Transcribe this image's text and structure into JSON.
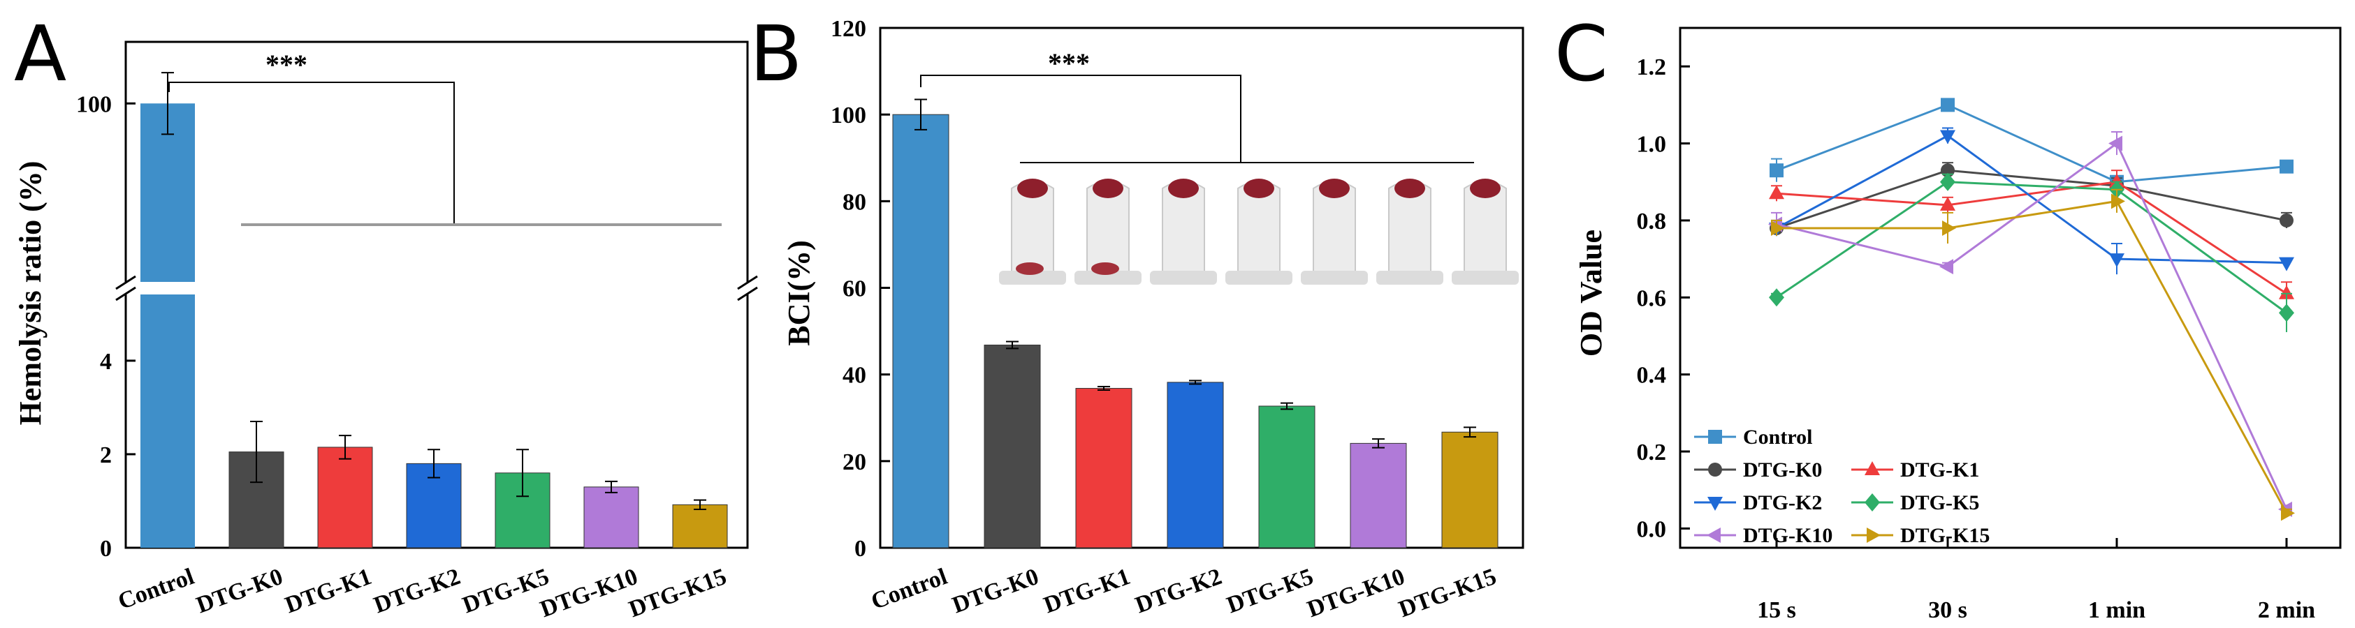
{
  "colors": {
    "Control": "#3f8fc9",
    "DTG-K0": "#4a4a4a",
    "DTG-K1": "#ee3c3c",
    "DTG-K2": "#1f6ad6",
    "DTG-K5": "#2fae68",
    "DTG-K10": "#b07ad8",
    "DTG-K15": "#c89a10"
  },
  "chart_data": [
    {
      "panel": "A",
      "type": "bar",
      "ylabel": "Hemolysis ratio (%)",
      "axis_break": true,
      "ylim_lower": [
        0,
        4.7
      ],
      "ylim_upper": [
        70,
        110
      ],
      "yticks": [
        "0",
        "2",
        "4",
        "100"
      ],
      "categories": [
        "Control",
        "DTG-K0",
        "DTG-K1",
        "DTG-K2",
        "DTG-K5",
        "DTG-K10",
        "DTG-K15"
      ],
      "values": [
        100,
        2.05,
        2.15,
        1.8,
        1.6,
        1.3,
        0.92
      ],
      "errors": [
        5,
        0.65,
        0.25,
        0.3,
        0.5,
        0.12,
        0.1
      ],
      "significance": "***"
    },
    {
      "panel": "B",
      "type": "bar",
      "ylabel": "BCI(%)",
      "ylim": [
        0,
        120
      ],
      "yticks": [
        "0",
        "20",
        "40",
        "60",
        "80",
        "100",
        "120"
      ],
      "categories": [
        "Control",
        "DTG-K0",
        "DTG-K1",
        "DTG-K2",
        "DTG-K5",
        "DTG-K10",
        "DTG-K15"
      ],
      "values": [
        100,
        46.8,
        36.8,
        38.2,
        32.7,
        24.1,
        26.7
      ],
      "errors": [
        3.5,
        0.8,
        0.4,
        0.4,
        0.7,
        1.0,
        1.1
      ],
      "significance": "***"
    },
    {
      "panel": "C",
      "type": "line",
      "ylabel": "OD Value",
      "ylim": [
        -0.05,
        1.3
      ],
      "yticks": [
        "0.0",
        "0.2",
        "0.4",
        "0.6",
        "0.8",
        "1.0",
        "1.2"
      ],
      "x": [
        "15 s",
        "30 s",
        "1 min",
        "2 min"
      ],
      "series": [
        {
          "name": "Control",
          "values": [
            0.93,
            1.1,
            0.9,
            0.94
          ],
          "errors": [
            0.03,
            0.01,
            0.01,
            0.01
          ],
          "marker": "square"
        },
        {
          "name": "DTG-K0",
          "values": [
            0.78,
            0.93,
            0.89,
            0.8
          ],
          "errors": [
            0.02,
            0.02,
            0.02,
            0.02
          ],
          "marker": "circle"
        },
        {
          "name": "DTG-K1",
          "values": [
            0.87,
            0.84,
            0.9,
            0.61
          ],
          "errors": [
            0.02,
            0.02,
            0.03,
            0.03
          ],
          "marker": "triangle-up"
        },
        {
          "name": "DTG-K2",
          "values": [
            0.78,
            1.02,
            0.7,
            0.69
          ],
          "errors": [
            0.02,
            0.02,
            0.04,
            0.01
          ],
          "marker": "triangle-down"
        },
        {
          "name": "DTG-K5",
          "values": [
            0.6,
            0.9,
            0.88,
            0.56
          ],
          "errors": [
            0.01,
            0.02,
            0.02,
            0.05
          ],
          "marker": "diamond"
        },
        {
          "name": "DTG-K10",
          "values": [
            0.79,
            0.68,
            1.0,
            0.05
          ],
          "errors": [
            0.03,
            0.01,
            0.03,
            0.01
          ],
          "marker": "triangle-left"
        },
        {
          "name": "DTG-K15",
          "values": [
            0.78,
            0.78,
            0.85,
            0.04
          ],
          "errors": [
            0.02,
            0.04,
            0.03,
            0.01
          ],
          "marker": "triangle-right"
        }
      ]
    }
  ]
}
